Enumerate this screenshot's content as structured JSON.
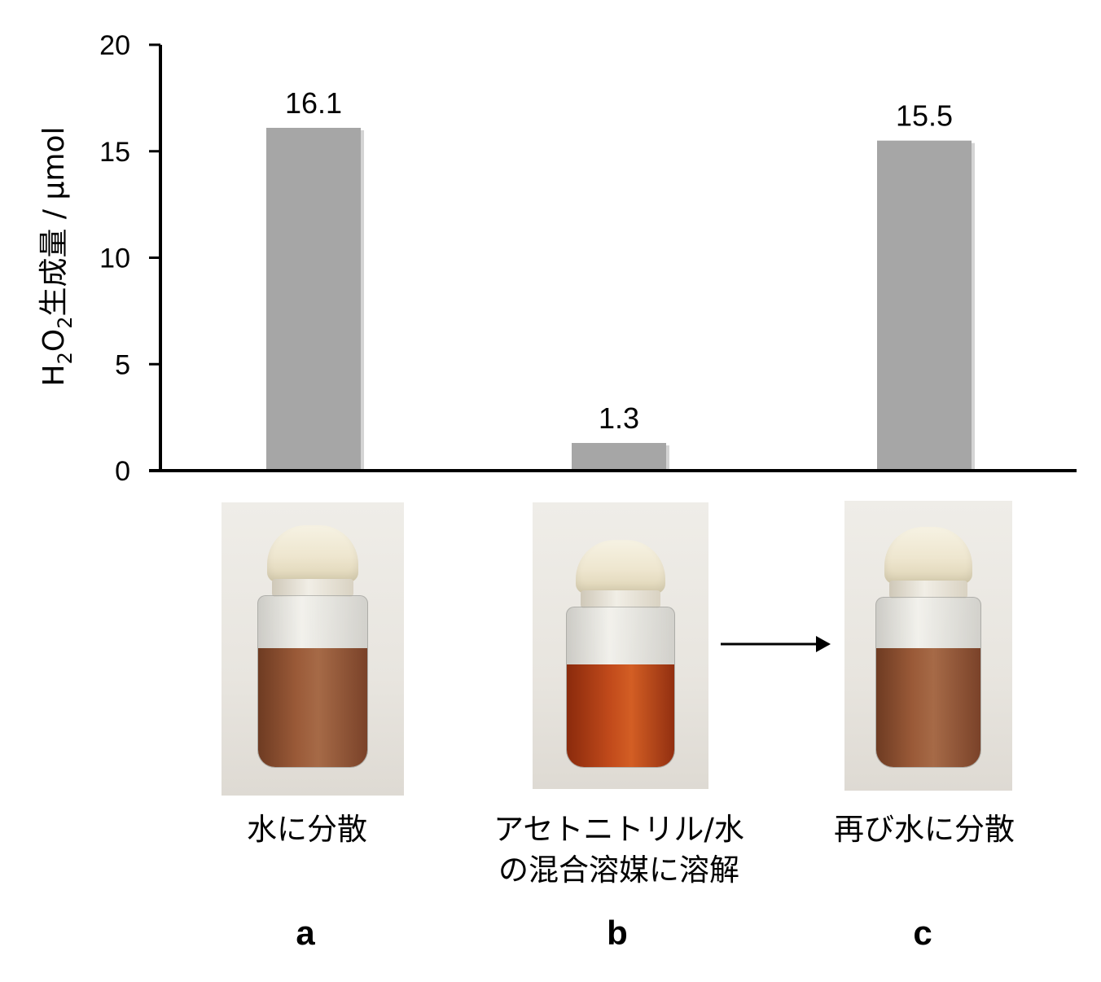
{
  "chart_data": {
    "type": "bar",
    "categories": [
      "a",
      "b",
      "c"
    ],
    "values": [
      16.1,
      1.3,
      15.5
    ],
    "data_labels": [
      "16.1",
      "1.3",
      "15.5"
    ],
    "ylabel_main": "H",
    "ylabel_sub1": "2",
    "ylabel_mid": "O",
    "ylabel_sub2": "2",
    "ylabel_rest": "生成量 / μmol",
    "ylim": [
      0,
      20
    ],
    "yticks": [
      "0",
      "5",
      "10",
      "15",
      "20"
    ],
    "grid": false,
    "bar_color": "#a6a6a6"
  },
  "captions": {
    "a": "水に分散",
    "b_line1": "アセトニトリル/水",
    "b_line2": "の混合溶媒に溶解",
    "c": "再び水に分散"
  },
  "letters": {
    "a": "a",
    "b": "b",
    "c": "c"
  }
}
